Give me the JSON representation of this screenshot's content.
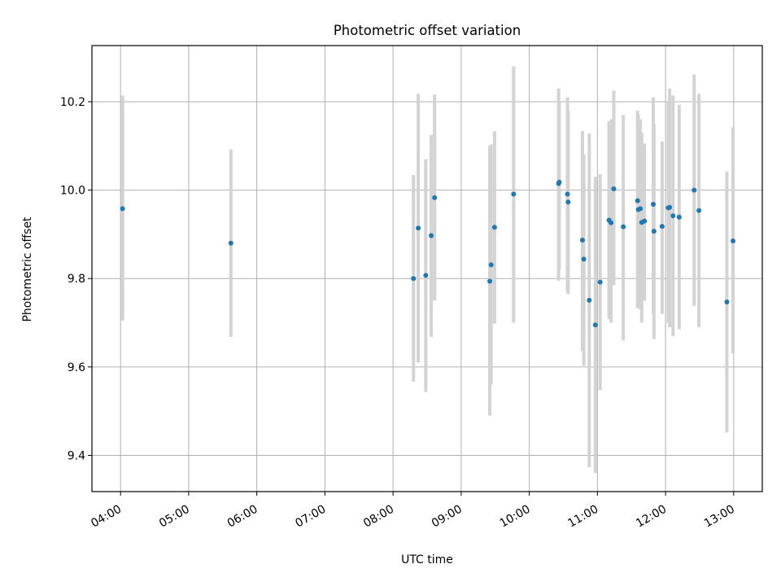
{
  "chart_data": {
    "type": "scatter",
    "title": "Photometric offset variation",
    "xlabel": "UTC time",
    "ylabel": "Photometric offset",
    "x_unit": "hours UTC",
    "xlim": [
      3.58,
      13.42
    ],
    "ylim": [
      9.318,
      10.327
    ],
    "x_ticks": [
      "04:00",
      "05:00",
      "06:00",
      "07:00",
      "08:00",
      "09:00",
      "10:00",
      "11:00",
      "12:00",
      "13:00"
    ],
    "y_ticks": [
      "9.4",
      "9.6",
      "9.8",
      "10.0",
      "10.2"
    ],
    "grid": true,
    "legend": "none",
    "point_color": "#1f77b4",
    "errorbar_color": "#d3d3d3",
    "points": [
      {
        "x": 4.03,
        "y": 9.958,
        "lo": 9.705,
        "hi": 10.214
      },
      {
        "x": 5.62,
        "y": 9.88,
        "lo": 9.668,
        "hi": 10.092
      },
      {
        "x": 8.3,
        "y": 9.8,
        "lo": 9.567,
        "hi": 10.034
      },
      {
        "x": 8.37,
        "y": 9.914,
        "lo": 9.61,
        "hi": 10.218
      },
      {
        "x": 8.48,
        "y": 9.807,
        "lo": 9.543,
        "hi": 10.07
      },
      {
        "x": 8.56,
        "y": 9.897,
        "lo": 9.668,
        "hi": 10.125
      },
      {
        "x": 8.61,
        "y": 9.983,
        "lo": 9.75,
        "hi": 10.216
      },
      {
        "x": 9.42,
        "y": 9.794,
        "lo": 9.49,
        "hi": 10.1
      },
      {
        "x": 9.44,
        "y": 9.831,
        "lo": 9.56,
        "hi": 10.103
      },
      {
        "x": 9.49,
        "y": 9.916,
        "lo": 9.698,
        "hi": 10.133
      },
      {
        "x": 9.77,
        "y": 9.991,
        "lo": 9.7,
        "hi": 10.28
      },
      {
        "x": 10.43,
        "y": 10.015,
        "lo": 9.795,
        "hi": 10.23
      },
      {
        "x": 10.44,
        "y": 10.018,
        "lo": 9.82,
        "hi": 10.2
      },
      {
        "x": 10.56,
        "y": 9.991,
        "lo": 9.77,
        "hi": 10.21
      },
      {
        "x": 10.57,
        "y": 9.973,
        "lo": 9.765,
        "hi": 10.18
      },
      {
        "x": 10.78,
        "y": 9.887,
        "lo": 9.636,
        "hi": 10.134
      },
      {
        "x": 10.8,
        "y": 9.844,
        "lo": 9.603,
        "hi": 10.08
      },
      {
        "x": 10.88,
        "y": 9.751,
        "lo": 9.373,
        "hi": 10.128
      },
      {
        "x": 10.97,
        "y": 9.695,
        "lo": 9.36,
        "hi": 10.03
      },
      {
        "x": 11.04,
        "y": 9.792,
        "lo": 9.548,
        "hi": 10.036
      },
      {
        "x": 11.17,
        "y": 9.932,
        "lo": 9.708,
        "hi": 10.156
      },
      {
        "x": 11.2,
        "y": 9.926,
        "lo": 9.7,
        "hi": 10.16
      },
      {
        "x": 11.24,
        "y": 10.003,
        "lo": 9.785,
        "hi": 10.225
      },
      {
        "x": 11.38,
        "y": 9.917,
        "lo": 9.66,
        "hi": 10.17
      },
      {
        "x": 11.59,
        "y": 9.976,
        "lo": 9.733,
        "hi": 10.18
      },
      {
        "x": 11.6,
        "y": 9.956,
        "lo": 9.735,
        "hi": 10.17
      },
      {
        "x": 11.63,
        "y": 9.958,
        "lo": 9.73,
        "hi": 10.16
      },
      {
        "x": 11.65,
        "y": 9.927,
        "lo": 9.7,
        "hi": 10.13
      },
      {
        "x": 11.69,
        "y": 9.93,
        "lo": 9.75,
        "hi": 10.105
      },
      {
        "x": 11.82,
        "y": 9.968,
        "lo": 9.72,
        "hi": 10.21
      },
      {
        "x": 11.83,
        "y": 9.907,
        "lo": 9.663,
        "hi": 10.15
      },
      {
        "x": 11.95,
        "y": 9.918,
        "lo": 9.72,
        "hi": 10.11
      },
      {
        "x": 12.04,
        "y": 9.96,
        "lo": 9.7,
        "hi": 10.2
      },
      {
        "x": 12.06,
        "y": 9.961,
        "lo": 9.69,
        "hi": 10.23
      },
      {
        "x": 12.11,
        "y": 9.942,
        "lo": 9.67,
        "hi": 10.214
      },
      {
        "x": 12.2,
        "y": 9.939,
        "lo": 9.685,
        "hi": 10.193
      },
      {
        "x": 12.42,
        "y": 10.0,
        "lo": 9.738,
        "hi": 10.262
      },
      {
        "x": 12.49,
        "y": 9.954,
        "lo": 9.69,
        "hi": 10.218
      },
      {
        "x": 12.9,
        "y": 9.747,
        "lo": 9.452,
        "hi": 10.042
      },
      {
        "x": 12.99,
        "y": 9.885,
        "lo": 9.63,
        "hi": 10.142
      }
    ]
  }
}
